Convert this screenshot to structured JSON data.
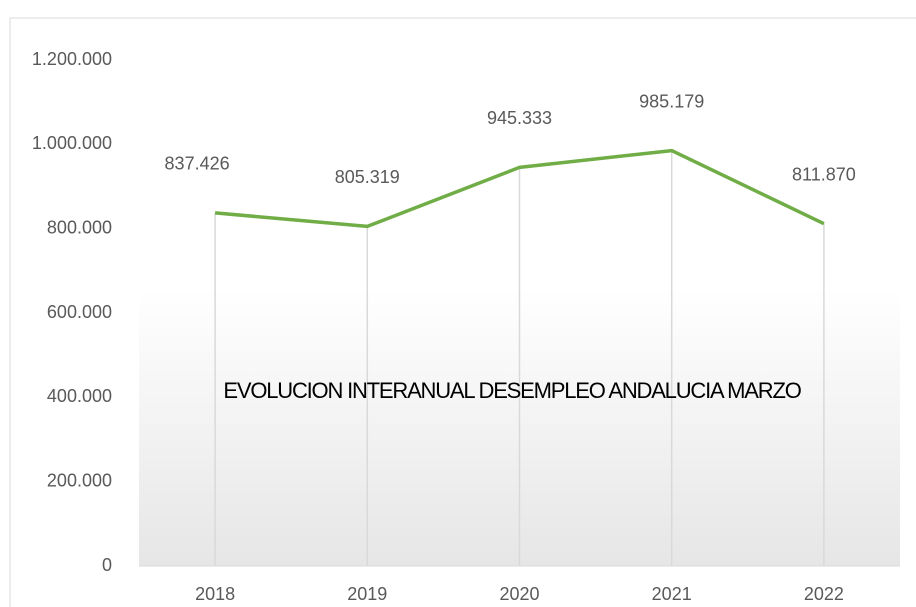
{
  "chart_data": {
    "type": "line",
    "title": "EVOLUCION INTERANUAL DESEMPLEO ANDALUCIA MARZO",
    "categories": [
      "2018",
      "2019",
      "2020",
      "2021",
      "2022"
    ],
    "series": [
      {
        "name": "Desempleo",
        "color": "#70ad47",
        "values": [
          837426,
          805319,
          945333,
          985179,
          811870
        ],
        "value_labels": [
          "837.426",
          "805.319",
          "945.333",
          "985.179",
          "811.870"
        ]
      }
    ],
    "ylim": [
      0,
      1200000
    ],
    "yticks": [
      0,
      {
        "value": 200000,
        "label": "200.000"
      },
      {
        "value": 400000,
        "label": "400.000"
      },
      {
        "value": 600000,
        "label": "600.000"
      },
      {
        "value": 800000,
        "label": "800.000"
      },
      {
        "value": 1000000,
        "label": "1.000.000"
      },
      {
        "value": 1200000,
        "label": "1.200.000"
      }
    ],
    "drop_lines": true
  }
}
